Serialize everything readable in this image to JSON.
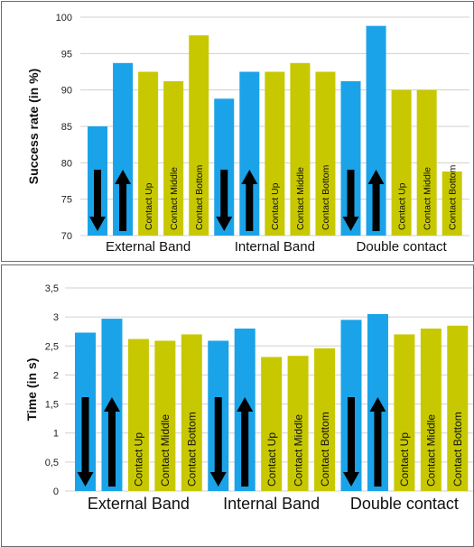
{
  "colors": {
    "down_up_bar": "#1aa3e8",
    "contact_bar": "#c8c800",
    "grid": "#d0d0d0",
    "arrow": "#000000"
  },
  "chart_data": [
    {
      "type": "bar",
      "ylabel": "Success rate (in %)",
      "ylim": [
        70,
        100
      ],
      "yticks": [
        70,
        75,
        80,
        85,
        90,
        95,
        100
      ],
      "ytick_labels": [
        "70",
        "75",
        "80",
        "85",
        "90",
        "95",
        "100"
      ],
      "groups": [
        "External Band",
        "Internal Band",
        "Double contact"
      ],
      "bars": [
        {
          "group": 0,
          "label": "",
          "icon": "down-arrow-icon",
          "color": "blue",
          "value": 85.0
        },
        {
          "group": 0,
          "label": "",
          "icon": "up-arrow-icon",
          "color": "blue",
          "value": 93.7
        },
        {
          "group": 0,
          "label": "Contact Up",
          "color": "yellow",
          "value": 92.5
        },
        {
          "group": 0,
          "label": "Contact Middle",
          "color": "yellow",
          "value": 91.2
        },
        {
          "group": 0,
          "label": "Contact Bottom",
          "color": "yellow",
          "value": 97.5
        },
        {
          "group": 1,
          "label": "",
          "icon": "down-arrow-icon",
          "color": "blue",
          "value": 88.8
        },
        {
          "group": 1,
          "label": "",
          "icon": "up-arrow-icon",
          "color": "blue",
          "value": 92.5
        },
        {
          "group": 1,
          "label": "Contact Up",
          "color": "yellow",
          "value": 92.5
        },
        {
          "group": 1,
          "label": "Contact Middle",
          "color": "yellow",
          "value": 93.7
        },
        {
          "group": 1,
          "label": "Contact Bottom",
          "color": "yellow",
          "value": 92.5
        },
        {
          "group": 2,
          "label": "",
          "icon": "down-arrow-icon",
          "color": "blue",
          "value": 91.2
        },
        {
          "group": 2,
          "label": "",
          "icon": "up-arrow-icon",
          "color": "blue",
          "value": 98.8
        },
        {
          "group": 2,
          "label": "Contact Up",
          "color": "yellow",
          "value": 90.0
        },
        {
          "group": 2,
          "label": "Contact Middle",
          "color": "yellow",
          "value": 90.0
        },
        {
          "group": 2,
          "label": "Contact Bottom",
          "color": "yellow",
          "value": 78.8
        }
      ]
    },
    {
      "type": "bar",
      "ylabel": "Time (in s)",
      "ylim": [
        0,
        3.5
      ],
      "yticks": [
        0,
        0.5,
        1,
        1.5,
        2,
        2.5,
        3,
        3.5
      ],
      "ytick_labels": [
        "0",
        "0,5",
        "1",
        "1,5",
        "2",
        "2,5",
        "3",
        "3,5"
      ],
      "groups": [
        "External Band",
        "Internal Band",
        "Double contact"
      ],
      "bars": [
        {
          "group": 0,
          "label": "",
          "icon": "down-arrow-icon",
          "color": "blue",
          "value": 2.73
        },
        {
          "group": 0,
          "label": "",
          "icon": "up-arrow-icon",
          "color": "blue",
          "value": 2.97
        },
        {
          "group": 0,
          "label": "Contact Up",
          "color": "yellow",
          "value": 2.62
        },
        {
          "group": 0,
          "label": "Contact Middle",
          "color": "yellow",
          "value": 2.59
        },
        {
          "group": 0,
          "label": "Contact Bottom",
          "color": "yellow",
          "value": 2.7
        },
        {
          "group": 1,
          "label": "",
          "icon": "down-arrow-icon",
          "color": "blue",
          "value": 2.59
        },
        {
          "group": 1,
          "label": "",
          "icon": "up-arrow-icon",
          "color": "blue",
          "value": 2.8
        },
        {
          "group": 1,
          "label": "Contact Up",
          "color": "yellow",
          "value": 2.31
        },
        {
          "group": 1,
          "label": "Contact Middle",
          "color": "yellow",
          "value": 2.33
        },
        {
          "group": 1,
          "label": "Contact Bottom",
          "color": "yellow",
          "value": 2.46
        },
        {
          "group": 2,
          "label": "",
          "icon": "down-arrow-icon",
          "color": "blue",
          "value": 2.95
        },
        {
          "group": 2,
          "label": "",
          "icon": "up-arrow-icon",
          "color": "blue",
          "value": 3.05
        },
        {
          "group": 2,
          "label": "Contact Up",
          "color": "yellow",
          "value": 2.7
        },
        {
          "group": 2,
          "label": "Contact Middle",
          "color": "yellow",
          "value": 2.8
        },
        {
          "group": 2,
          "label": "Contact Bottom",
          "color": "yellow",
          "value": 2.85
        }
      ]
    }
  ]
}
